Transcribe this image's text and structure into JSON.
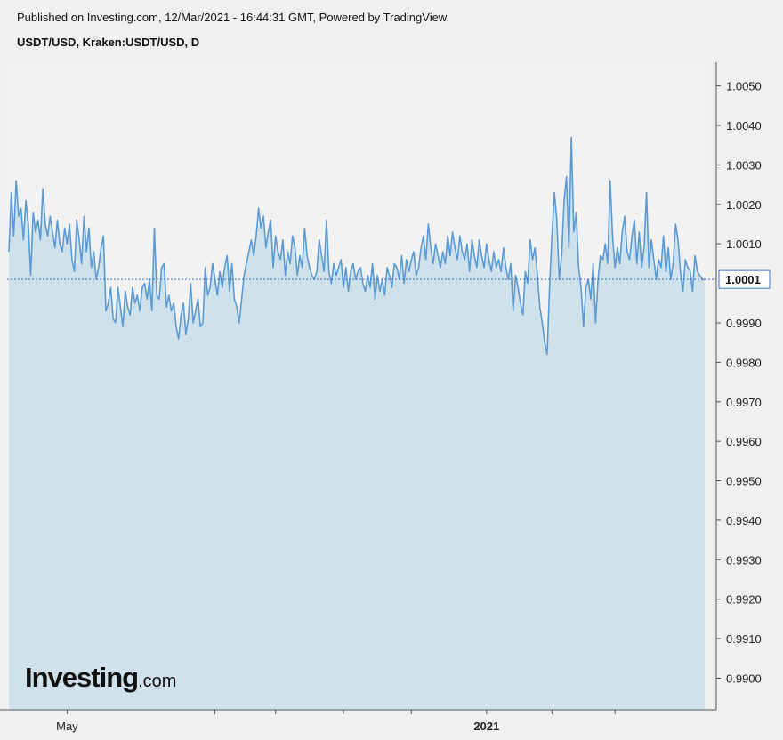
{
  "header": {
    "published": "Published on Investing.com, 12/Mar/2021 - 16:44:31 GMT, Powered by TradingView.",
    "symbol": "USDT/USD, Kraken:USDT/USD, D"
  },
  "logo": {
    "main": "Investing",
    "suffix": ".com"
  },
  "colors": {
    "line": "#5b9bd5",
    "area_fill": "#cfe1ea",
    "last_price_line": "#3f72c9",
    "axis": "#555555"
  },
  "chart_data": {
    "type": "area",
    "title": "USDT/USD, Kraken:USDT/USD, D",
    "xlabel": "",
    "ylabel": "",
    "ylim": [
      0.9892,
      1.0056
    ],
    "yticks": [
      1.005,
      1.004,
      1.003,
      1.002,
      1.001,
      0.999,
      0.998,
      0.997,
      0.996,
      0.995,
      0.994,
      0.993,
      0.992,
      0.991,
      0.99
    ],
    "ytick_labels": [
      "1.0050",
      "1.0040",
      "1.0030",
      "1.0020",
      "1.0010",
      "0.9990",
      "0.9980",
      "0.9970",
      "0.9960",
      "0.9950",
      "0.9940",
      "0.9930",
      "0.9920",
      "0.9910",
      "0.9900"
    ],
    "x_tick_labels": [
      {
        "label": "May",
        "day": 24
      },
      {
        "label": "2021",
        "day": 197
      }
    ],
    "minor_x_ticks_day": [
      85,
      110,
      138,
      166,
      224,
      250
    ],
    "last_price": 1.0001,
    "last_price_label": "1.0001",
    "grid": false,
    "series": [
      {
        "values": [
          1.0008,
          1.0023,
          1.0012,
          1.0026,
          1.0017,
          1.0019,
          1.0011,
          1.0021,
          1.0015,
          1.0002,
          1.0018,
          1.0013,
          1.0016,
          1.0011,
          1.0024,
          1.0015,
          1.0012,
          1.0017,
          1.0013,
          1.0009,
          1.0016,
          1.001,
          1.0008,
          1.0014,
          1.001,
          1.0015,
          1.0006,
          1.0003,
          1.0016,
          1.0011,
          1.0005,
          1.0017,
          1.0008,
          1.0014,
          1.0004,
          1.0008,
          1.0001,
          1.0004,
          1.0009,
          1.0012,
          0.9993,
          0.9995,
          0.9999,
          0.9991,
          0.999,
          0.9999,
          0.9994,
          0.9989,
          0.9998,
          0.9994,
          0.9992,
          0.9999,
          0.9995,
          0.9997,
          0.9993,
          0.9999,
          1.0,
          0.9996,
          1.0001,
          0.9993,
          1.0014,
          0.9997,
          0.9996,
          1.0004,
          1.0005,
          0.9994,
          0.9997,
          0.9993,
          0.9995,
          0.9989,
          0.9986,
          0.9992,
          0.9995,
          0.9987,
          0.9991,
          1.0,
          0.999,
          0.9993,
          0.9996,
          0.9989,
          0.999,
          1.0004,
          0.9997,
          0.9999,
          1.0005,
          1.0001,
          0.9997,
          1.0003,
          0.9999,
          1.0004,
          1.0007,
          0.9998,
          1.0005,
          0.9996,
          0.9994,
          0.999,
          0.9996,
          1.0002,
          1.0005,
          1.0008,
          1.0011,
          1.0007,
          1.0012,
          1.0019,
          1.0014,
          1.0017,
          1.0009,
          1.0013,
          1.0016,
          1.0004,
          1.0012,
          1.0008,
          1.0006,
          1.0011,
          1.0002,
          1.0008,
          1.0005,
          1.0012,
          1.0009,
          1.0002,
          1.0007,
          1.0004,
          1.0014,
          1.0007,
          1.0004,
          1.0002,
          1.0001,
          1.0003,
          1.0011,
          1.0007,
          1.0003,
          1.0016,
          1.0003,
          1.0,
          1.0005,
          1.0002,
          1.0004,
          1.0006,
          0.9999,
          1.0004,
          0.9998,
          1.0003,
          1.0005,
          1.0001,
          1.0003,
          1.0004,
          1.0,
          0.9998,
          1.0002,
          0.9999,
          1.0005,
          0.9996,
          1.0002,
          0.9998,
          1.0001,
          0.9997,
          1.0004,
          1.0002,
          0.9999,
          1.0005,
          1.0004,
          1.0001,
          1.0007,
          1.0,
          1.0006,
          1.0003,
          1.0006,
          1.0008,
          1.0002,
          1.0004,
          1.0009,
          1.0012,
          1.0006,
          1.0015,
          1.0009,
          1.0005,
          1.001,
          1.0007,
          1.0004,
          1.0008,
          1.0005,
          1.0012,
          1.0007,
          1.0013,
          1.0009,
          1.0006,
          1.0012,
          1.0008,
          1.0006,
          1.001,
          1.0003,
          1.0011,
          1.0007,
          1.0004,
          1.0011,
          1.0007,
          1.0004,
          1.001,
          1.0006,
          1.0003,
          1.0008,
          1.0004,
          1.0006,
          1.0003,
          1.0009,
          1.0004,
          1.0001,
          1.0005,
          0.9993,
          1.0002,
          0.9999,
          0.9995,
          0.9992,
          1.0003,
          1.0,
          1.0011,
          1.0006,
          1.0009,
          1.0002,
          0.9994,
          0.999,
          0.9985,
          0.9982,
          0.9999,
          1.0012,
          1.0023,
          1.0016,
          1.0001,
          1.0007,
          1.0021,
          1.0027,
          1.0009,
          1.0037,
          1.0013,
          1.0018,
          1.0004,
          0.9999,
          0.9989,
          0.9999,
          1.0001,
          0.9996,
          1.0005,
          0.999,
          1.0001,
          1.0007,
          1.0006,
          1.001,
          1.0005,
          1.0026,
          1.0012,
          1.0004,
          1.0009,
          1.0005,
          1.0013,
          1.0017,
          1.0008,
          1.0006,
          1.0012,
          1.0016,
          1.0005,
          1.0013,
          1.0004,
          1.0009,
          1.0023,
          1.0004,
          1.0011,
          1.0006,
          1.0001,
          1.0006,
          1.0004,
          1.0012,
          1.0003,
          1.0009,
          1.0001,
          1.0005,
          1.0015,
          1.0011,
          1.0003,
          0.9998,
          1.0006,
          1.0004,
          1.0003,
          0.9998,
          1.0007,
          1.0003,
          1.0002,
          1.0001,
          1.0001
        ]
      }
    ]
  }
}
